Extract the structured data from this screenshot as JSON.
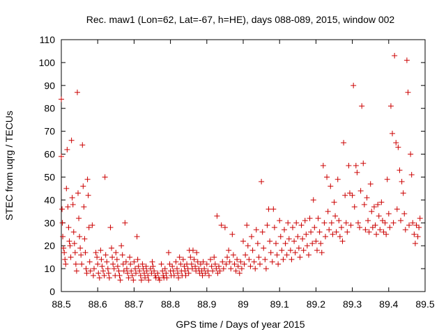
{
  "chart_data": {
    "type": "scatter",
    "title": "Rec. maw1 (Lon=62, Lat=-67, h=HE), days 088-089, 2015, window 002",
    "xlabel": "GPS time / Days of year 2015",
    "ylabel": "STEC from uqrg / TECUs",
    "xlim": [
      88.5,
      89.5
    ],
    "ylim": [
      0,
      110
    ],
    "x_ticks": [
      "88.5",
      "88.6",
      "88.7",
      "88.8",
      "88.9",
      "89",
      "89.1",
      "89.2",
      "89.3",
      "89.4",
      "89.5"
    ],
    "y_ticks": [
      "0",
      "10",
      "20",
      "30",
      "40",
      "50",
      "60",
      "70",
      "80",
      "90",
      "100",
      "110"
    ],
    "grid": false,
    "marker": "plus",
    "marker_color": "#cc0000",
    "points": [
      [
        88.5,
        84
      ],
      [
        88.5,
        59
      ],
      [
        88.502,
        36
      ],
      [
        88.503,
        30
      ],
      [
        88.504,
        24
      ],
      [
        88.506,
        19
      ],
      [
        88.508,
        17
      ],
      [
        88.51,
        14
      ],
      [
        88.512,
        12
      ],
      [
        88.514,
        45
      ],
      [
        88.516,
        62
      ],
      [
        88.518,
        37
      ],
      [
        88.52,
        28
      ],
      [
        88.522,
        22
      ],
      [
        88.524,
        20
      ],
      [
        88.526,
        15
      ],
      [
        88.528,
        66
      ],
      [
        88.53,
        41
      ],
      [
        88.532,
        38
      ],
      [
        88.534,
        26
      ],
      [
        88.536,
        21
      ],
      [
        88.538,
        17
      ],
      [
        88.54,
        12
      ],
      [
        88.542,
        9
      ],
      [
        88.544,
        87
      ],
      [
        88.546,
        43
      ],
      [
        88.548,
        32
      ],
      [
        88.55,
        24
      ],
      [
        88.552,
        19
      ],
      [
        88.554,
        16
      ],
      [
        88.556,
        12
      ],
      [
        88.558,
        64
      ],
      [
        88.56,
        46
      ],
      [
        88.562,
        37
      ],
      [
        88.564,
        23
      ],
      [
        88.566,
        17
      ],
      [
        88.568,
        10
      ],
      [
        88.57,
        8
      ],
      [
        88.572,
        49
      ],
      [
        88.574,
        42
      ],
      [
        88.576,
        28
      ],
      [
        88.578,
        13
      ],
      [
        88.58,
        9
      ],
      [
        88.585,
        29
      ],
      [
        88.588,
        7
      ],
      [
        88.59,
        10
      ],
      [
        88.595,
        17
      ],
      [
        88.598,
        15
      ],
      [
        88.6,
        12
      ],
      [
        88.602,
        8
      ],
      [
        88.605,
        6
      ],
      [
        88.608,
        18
      ],
      [
        88.61,
        14
      ],
      [
        88.612,
        11
      ],
      [
        88.615,
        9
      ],
      [
        88.618,
        7
      ],
      [
        88.62,
        50
      ],
      [
        88.622,
        16
      ],
      [
        88.625,
        13
      ],
      [
        88.628,
        10
      ],
      [
        88.63,
        8
      ],
      [
        88.632,
        6
      ],
      [
        88.635,
        28
      ],
      [
        88.638,
        19
      ],
      [
        88.64,
        15
      ],
      [
        88.642,
        12
      ],
      [
        88.645,
        10
      ],
      [
        88.648,
        7
      ],
      [
        88.65,
        17
      ],
      [
        88.653,
        14
      ],
      [
        88.655,
        11
      ],
      [
        88.658,
        9
      ],
      [
        88.66,
        7
      ],
      [
        88.662,
        5
      ],
      [
        88.665,
        20
      ],
      [
        88.668,
        16
      ],
      [
        88.67,
        12
      ],
      [
        88.672,
        9
      ],
      [
        88.675,
        30
      ],
      [
        88.678,
        13
      ],
      [
        88.68,
        10
      ],
      [
        88.682,
        8
      ],
      [
        88.685,
        6
      ],
      [
        88.688,
        15
      ],
      [
        88.69,
        12
      ],
      [
        88.692,
        9
      ],
      [
        88.695,
        7
      ],
      [
        88.698,
        5
      ],
      [
        88.7,
        13
      ],
      [
        88.703,
        10
      ],
      [
        88.705,
        8
      ],
      [
        88.708,
        24
      ],
      [
        88.71,
        14
      ],
      [
        88.712,
        11
      ],
      [
        88.715,
        9
      ],
      [
        88.718,
        7
      ],
      [
        88.72,
        5
      ],
      [
        88.723,
        12
      ],
      [
        88.725,
        10
      ],
      [
        88.728,
        8
      ],
      [
        88.73,
        6
      ],
      [
        88.733,
        11
      ],
      [
        88.735,
        9
      ],
      [
        88.738,
        7
      ],
      [
        88.74,
        5
      ],
      [
        88.745,
        10
      ],
      [
        88.748,
        8
      ],
      [
        88.75,
        13
      ],
      [
        88.752,
        11
      ],
      [
        88.755,
        9
      ],
      [
        88.758,
        7
      ],
      [
        88.76,
        6
      ],
      [
        88.765,
        8
      ],
      [
        88.768,
        6
      ],
      [
        88.77,
        5
      ],
      [
        88.775,
        12
      ],
      [
        88.778,
        9
      ],
      [
        88.78,
        7
      ],
      [
        88.782,
        6
      ],
      [
        88.785,
        10
      ],
      [
        88.788,
        8
      ],
      [
        88.79,
        6
      ],
      [
        88.795,
        17
      ],
      [
        88.798,
        12
      ],
      [
        88.8,
        9
      ],
      [
        88.802,
        7
      ],
      [
        88.805,
        11
      ],
      [
        88.808,
        9
      ],
      [
        88.81,
        7
      ],
      [
        88.815,
        13
      ],
      [
        88.818,
        10
      ],
      [
        88.82,
        8
      ],
      [
        88.822,
        6
      ],
      [
        88.825,
        15
      ],
      [
        88.828,
        12
      ],
      [
        88.83,
        9
      ],
      [
        88.832,
        7
      ],
      [
        88.835,
        14
      ],
      [
        88.838,
        11
      ],
      [
        88.84,
        9
      ],
      [
        88.842,
        7
      ],
      [
        88.845,
        12
      ],
      [
        88.848,
        10
      ],
      [
        88.85,
        8
      ],
      [
        88.852,
        18
      ],
      [
        88.855,
        15
      ],
      [
        88.858,
        12
      ],
      [
        88.86,
        10
      ],
      [
        88.862,
        18
      ],
      [
        88.865,
        14
      ],
      [
        88.868,
        11
      ],
      [
        88.87,
        9
      ],
      [
        88.872,
        17
      ],
      [
        88.875,
        13
      ],
      [
        88.878,
        10
      ],
      [
        88.88,
        8
      ],
      [
        88.883,
        12
      ],
      [
        88.886,
        9
      ],
      [
        88.888,
        7
      ],
      [
        88.89,
        13
      ],
      [
        88.893,
        10
      ],
      [
        88.896,
        8
      ],
      [
        88.9,
        12
      ],
      [
        88.903,
        9
      ],
      [
        88.906,
        7
      ],
      [
        88.91,
        14
      ],
      [
        88.913,
        11
      ],
      [
        88.916,
        9
      ],
      [
        88.92,
        15
      ],
      [
        88.923,
        12
      ],
      [
        88.926,
        10
      ],
      [
        88.928,
        33
      ],
      [
        88.93,
        8
      ],
      [
        88.933,
        11
      ],
      [
        88.936,
        9
      ],
      [
        88.94,
        29
      ],
      [
        88.943,
        13
      ],
      [
        88.946,
        10
      ],
      [
        88.95,
        28
      ],
      [
        88.953,
        12
      ],
      [
        88.956,
        15
      ],
      [
        88.96,
        18
      ],
      [
        88.963,
        13
      ],
      [
        88.966,
        10
      ],
      [
        88.97,
        25
      ],
      [
        88.973,
        16
      ],
      [
        88.976,
        12
      ],
      [
        88.98,
        9
      ],
      [
        88.983,
        14
      ],
      [
        88.986,
        11
      ],
      [
        88.99,
        8
      ],
      [
        88.993,
        13
      ],
      [
        88.996,
        10
      ],
      [
        89.0,
        22
      ],
      [
        89.003,
        12
      ],
      [
        89.006,
        16
      ],
      [
        89.01,
        29
      ],
      [
        89.013,
        20
      ],
      [
        89.016,
        14
      ],
      [
        89.02,
        11
      ],
      [
        89.023,
        24
      ],
      [
        89.026,
        18
      ],
      [
        89.03,
        13
      ],
      [
        89.033,
        10
      ],
      [
        89.036,
        27
      ],
      [
        89.04,
        21
      ],
      [
        89.043,
        15
      ],
      [
        89.046,
        12
      ],
      [
        89.05,
        48
      ],
      [
        89.053,
        26
      ],
      [
        89.056,
        19
      ],
      [
        89.06,
        14
      ],
      [
        89.063,
        10
      ],
      [
        89.066,
        29
      ],
      [
        89.07,
        36
      ],
      [
        89.073,
        22
      ],
      [
        89.076,
        17
      ],
      [
        89.08,
        13
      ],
      [
        89.083,
        36
      ],
      [
        89.086,
        28
      ],
      [
        89.09,
        21
      ],
      [
        89.093,
        16
      ],
      [
        89.096,
        12
      ],
      [
        89.1,
        31
      ],
      [
        89.103,
        24
      ],
      [
        89.106,
        18
      ],
      [
        89.11,
        14
      ],
      [
        89.113,
        27
      ],
      [
        89.116,
        21
      ],
      [
        89.12,
        16
      ],
      [
        89.123,
        30
      ],
      [
        89.126,
        23
      ],
      [
        89.13,
        18
      ],
      [
        89.133,
        14
      ],
      [
        89.136,
        28
      ],
      [
        89.14,
        22
      ],
      [
        89.143,
        17
      ],
      [
        89.146,
        30
      ],
      [
        89.15,
        24
      ],
      [
        89.153,
        19
      ],
      [
        89.156,
        15
      ],
      [
        89.16,
        29
      ],
      [
        89.163,
        23
      ],
      [
        89.166,
        18
      ],
      [
        89.17,
        31
      ],
      [
        89.173,
        25
      ],
      [
        89.176,
        20
      ],
      [
        89.18,
        16
      ],
      [
        89.183,
        32
      ],
      [
        89.186,
        26
      ],
      [
        89.19,
        21
      ],
      [
        89.193,
        40
      ],
      [
        89.196,
        28
      ],
      [
        89.2,
        22
      ],
      [
        89.203,
        18
      ],
      [
        89.206,
        32
      ],
      [
        89.21,
        26
      ],
      [
        89.213,
        21
      ],
      [
        89.216,
        17
      ],
      [
        89.22,
        55
      ],
      [
        89.223,
        30
      ],
      [
        89.226,
        24
      ],
      [
        89.23,
        50
      ],
      [
        89.233,
        35
      ],
      [
        89.236,
        27
      ],
      [
        89.24,
        46
      ],
      [
        89.243,
        30
      ],
      [
        89.246,
        25
      ],
      [
        89.25,
        39
      ],
      [
        89.253,
        33
      ],
      [
        89.256,
        26
      ],
      [
        89.26,
        49
      ],
      [
        89.263,
        31
      ],
      [
        89.266,
        24
      ],
      [
        89.27,
        28
      ],
      [
        89.273,
        22
      ],
      [
        89.276,
        65
      ],
      [
        89.28,
        42
      ],
      [
        89.283,
        30
      ],
      [
        89.286,
        26
      ],
      [
        89.29,
        55
      ],
      [
        89.293,
        43
      ],
      [
        89.296,
        29
      ],
      [
        89.3,
        42
      ],
      [
        89.303,
        90
      ],
      [
        89.306,
        37
      ],
      [
        89.31,
        55
      ],
      [
        89.313,
        52
      ],
      [
        89.316,
        30
      ],
      [
        89.32,
        28
      ],
      [
        89.323,
        44
      ],
      [
        89.326,
        81
      ],
      [
        89.33,
        56
      ],
      [
        89.333,
        38
      ],
      [
        89.336,
        27
      ],
      [
        89.34,
        41
      ],
      [
        89.343,
        31
      ],
      [
        89.346,
        26
      ],
      [
        89.35,
        47
      ],
      [
        89.353,
        35
      ],
      [
        89.356,
        28
      ],
      [
        89.36,
        37
      ],
      [
        89.363,
        29
      ],
      [
        89.366,
        25
      ],
      [
        89.37,
        38
      ],
      [
        89.373,
        33
      ],
      [
        89.376,
        27
      ],
      [
        89.38,
        39
      ],
      [
        89.383,
        31
      ],
      [
        89.386,
        26
      ],
      [
        89.39,
        30
      ],
      [
        89.393,
        25
      ],
      [
        89.396,
        49
      ],
      [
        89.4,
        34
      ],
      [
        89.403,
        28
      ],
      [
        89.406,
        81
      ],
      [
        89.41,
        69
      ],
      [
        89.413,
        30
      ],
      [
        89.416,
        103
      ],
      [
        89.42,
        65
      ],
      [
        89.423,
        36
      ],
      [
        89.426,
        63
      ],
      [
        89.43,
        53
      ],
      [
        89.433,
        31
      ],
      [
        89.436,
        48
      ],
      [
        89.44,
        43
      ],
      [
        89.443,
        34
      ],
      [
        89.446,
        27
      ],
      [
        89.45,
        101
      ],
      [
        89.453,
        87
      ],
      [
        89.456,
        29
      ],
      [
        89.46,
        60
      ],
      [
        89.463,
        51
      ],
      [
        89.466,
        30
      ],
      [
        89.47,
        25
      ],
      [
        89.473,
        21
      ],
      [
        89.476,
        29
      ],
      [
        89.48,
        24
      ],
      [
        89.483,
        28
      ],
      [
        89.486,
        32
      ]
    ]
  }
}
